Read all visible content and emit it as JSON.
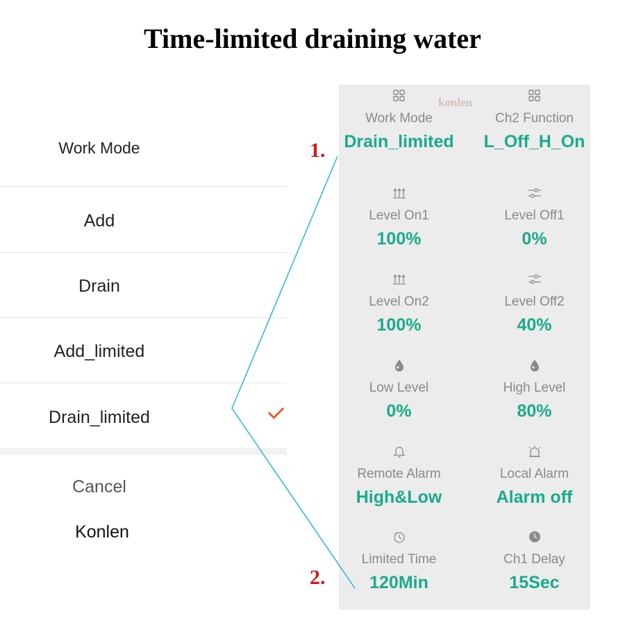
{
  "title": "Time-limited draining water",
  "watermark": "konlen",
  "markers": [
    "1.",
    "2."
  ],
  "action_sheet": {
    "header": "Work Mode",
    "options": [
      "Add",
      "Drain",
      "Add_limited",
      "Drain_limited"
    ],
    "selected": "Drain_limited",
    "cancel_label": "Cancel"
  },
  "brand_label": "Konlen",
  "settings": [
    {
      "label": "Work Mode",
      "value": "Drain_limited",
      "icon": "grid-icon"
    },
    {
      "label": "Ch2 Function",
      "value": "L_Off_H_On",
      "icon": "grid-icon"
    },
    {
      "label": "Level On1",
      "value": "100%",
      "icon": "level-on-icon"
    },
    {
      "label": "Level Off1",
      "value": "0%",
      "icon": "sliders-icon"
    },
    {
      "label": "Level On2",
      "value": "100%",
      "icon": "level-on-icon"
    },
    {
      "label": "Level Off2",
      "value": "40%",
      "icon": "sliders-icon"
    },
    {
      "label": "Low Level",
      "value": "0%",
      "icon": "droplet-icon"
    },
    {
      "label": "High Level",
      "value": "80%",
      "icon": "droplet-icon"
    },
    {
      "label": "Remote Alarm",
      "value": "High&Low",
      "icon": "bell-icon"
    },
    {
      "label": "Local Alarm",
      "value": "Alarm off",
      "icon": "siren-icon"
    },
    {
      "label": "Limited Time",
      "value": "120Min",
      "icon": "timer-icon"
    },
    {
      "label": "Ch1 Delay",
      "value": "15Sec",
      "icon": "clock-icon"
    }
  ],
  "colors": {
    "value_accent": "#1aab8a",
    "marker_red": "#cc1a1a",
    "check_orange": "#e5612b",
    "connector_line": "#3ab7e0",
    "panel_bg": "#ececec"
  }
}
